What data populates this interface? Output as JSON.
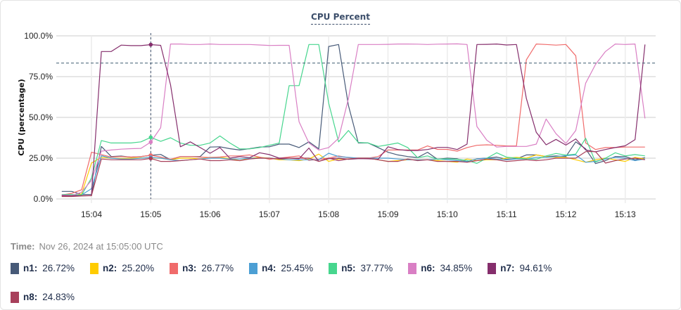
{
  "chart_data": {
    "type": "line",
    "title": "CPU Percent",
    "ylabel": "CPU (percentage)",
    "xlabel": "",
    "ylim": [
      0,
      100
    ],
    "y_ticks": [
      "0.0%",
      "25.0%",
      "50.0%",
      "75.0%",
      "100.0%"
    ],
    "x_ticks": [
      "15:04",
      "15:05",
      "15:06",
      "15:07",
      "15:08",
      "15:09",
      "15:10",
      "15:11",
      "15:12",
      "15:13"
    ],
    "grid": true,
    "threshold": 83.3,
    "crosshair_time": "15:05:00",
    "x": [
      "15:03:30",
      "15:03:40",
      "15:03:50",
      "15:04:00",
      "15:04:10",
      "15:04:20",
      "15:04:30",
      "15:04:40",
      "15:04:50",
      "15:05:00",
      "15:05:10",
      "15:05:20",
      "15:05:30",
      "15:05:40",
      "15:05:50",
      "15:06:00",
      "15:06:10",
      "15:06:20",
      "15:06:30",
      "15:06:40",
      "15:06:50",
      "15:07:00",
      "15:07:10",
      "15:07:20",
      "15:07:30",
      "15:07:40",
      "15:07:50",
      "15:08:00",
      "15:08:10",
      "15:08:20",
      "15:08:30",
      "15:08:40",
      "15:08:50",
      "15:09:00",
      "15:09:10",
      "15:09:20",
      "15:09:30",
      "15:09:40",
      "15:09:50",
      "15:10:00",
      "15:10:10",
      "15:10:20",
      "15:10:30",
      "15:10:40",
      "15:10:50",
      "15:11:00",
      "15:11:10",
      "15:11:20",
      "15:11:30",
      "15:11:40",
      "15:11:50",
      "15:12:00",
      "15:12:10",
      "15:12:20",
      "15:12:30",
      "15:12:40",
      "15:12:50",
      "15:13:00",
      "15:13:10",
      "15:13:20"
    ],
    "series": [
      {
        "name": "n1",
        "color": "#475a78",
        "values": [
          4.6,
          4.6,
          2.7,
          2.7,
          32.2,
          26,
          26.3,
          25.6,
          26,
          26.72,
          27.3,
          24,
          26,
          26,
          26,
          31.8,
          32,
          30.8,
          30,
          30.8,
          31.8,
          32,
          33.6,
          33.6,
          31.5,
          35,
          30.7,
          93.5,
          94.7,
          57.3,
          34.3,
          34.3,
          31.5,
          28.6,
          27,
          26,
          25.4,
          28.6,
          24.3,
          25,
          24.6,
          22.8,
          24.6,
          25,
          25.7,
          24.3,
          24.6,
          27,
          27,
          26,
          26.4,
          26,
          35,
          30.7,
          21.7,
          23.5,
          26,
          26,
          24,
          25.3
        ]
      },
      {
        "name": "n2",
        "color": "#ffcc00",
        "values": [
          1.6,
          2,
          3,
          22,
          25.5,
          25,
          24.8,
          25,
          25.2,
          25.2,
          25,
          24,
          25,
          25,
          24.5,
          25.5,
          25.5,
          24.8,
          23.5,
          25,
          25.5,
          25,
          24,
          24,
          23.5,
          24.5,
          27.5,
          23,
          24.5,
          24.5,
          25,
          25,
          24,
          23,
          23.5,
          24,
          24,
          24,
          23.5,
          23,
          22.5,
          24.5,
          23.5,
          24,
          24,
          25,
          25.5,
          25,
          27,
          26,
          25.5,
          25.5,
          24,
          22.5,
          24,
          25,
          24,
          23,
          25.5,
          24.5
        ]
      },
      {
        "name": "n3",
        "color": "#f06b6b",
        "values": [
          2.4,
          3.4,
          5.6,
          28.6,
          27.2,
          25.7,
          26,
          25.7,
          26,
          26.77,
          25.7,
          24.3,
          26,
          26,
          25.7,
          25.4,
          25.7,
          26.4,
          26.4,
          27,
          25.7,
          24.3,
          25,
          25.7,
          26.4,
          23.6,
          24.3,
          25,
          26.4,
          25.3,
          25,
          25,
          26,
          30,
          30,
          30,
          30,
          32.5,
          30.4,
          30.4,
          29.3,
          31.5,
          32.9,
          33.2,
          32.9,
          32.5,
          32.5,
          85.3,
          95,
          94.7,
          94.3,
          94.7,
          87.8,
          34.3,
          30.3,
          31.5,
          31.5,
          31.8,
          31.8,
          31.8
        ]
      },
      {
        "name": "n4",
        "color": "#4c9fd4",
        "values": [
          1.8,
          2,
          2.5,
          6.3,
          26.5,
          25,
          24.5,
          24.5,
          25,
          25.45,
          25,
          24,
          23.5,
          24,
          24.5,
          25,
          25,
          24.5,
          24.5,
          25,
          25,
          25,
          24.5,
          24,
          24,
          24,
          24,
          28,
          26,
          25.5,
          25,
          25,
          25,
          25,
          24.5,
          24,
          24,
          24,
          24.5,
          24,
          23.5,
          23,
          24.5,
          25,
          24.5,
          24,
          24.5,
          24.5,
          25.5,
          25.5,
          26,
          26.5,
          27,
          22.5,
          23,
          24.5,
          25.5,
          25,
          23.5,
          24.5
        ]
      },
      {
        "name": "n5",
        "color": "#47d68e",
        "values": [
          2.7,
          2.7,
          2.4,
          12.8,
          35.8,
          34.3,
          34.3,
          34.3,
          35,
          37.77,
          35.3,
          37.5,
          34.3,
          32.9,
          32.9,
          34.3,
          38.6,
          34.3,
          30.7,
          30.7,
          31.5,
          32.9,
          34.3,
          69.5,
          69.5,
          94.7,
          94.7,
          58.8,
          35,
          42,
          34.6,
          34.3,
          32.2,
          33.2,
          34.3,
          31.5,
          25.3,
          26.4,
          24.3,
          24.6,
          24.3,
          23.6,
          21.8,
          25,
          28.3,
          25.6,
          25,
          24.6,
          24.3,
          26.4,
          27.9,
          26.9,
          27.5,
          37.2,
          22.6,
          25,
          28.3,
          26.4,
          27.2,
          26.4
        ]
      },
      {
        "name": "n6",
        "color": "#d97fc4",
        "values": [
          2.4,
          2,
          4.2,
          11.4,
          29.3,
          30,
          30.5,
          30.8,
          31,
          34.85,
          43.7,
          95,
          95,
          94.7,
          94.7,
          95,
          94.7,
          94.7,
          94.7,
          94.7,
          94.4,
          94.1,
          94.2,
          94.2,
          47.3,
          34.3,
          30,
          31.5,
          37.2,
          61.6,
          94.7,
          94.7,
          94.7,
          94.8,
          95,
          95,
          94.9,
          94.7,
          94.9,
          95,
          95.1,
          94.7,
          44.4,
          36,
          31.8,
          32.2,
          32.2,
          32.2,
          33.6,
          49,
          40,
          34,
          42,
          71,
          82.5,
          90.4,
          95,
          94.7,
          95,
          49.4
        ]
      },
      {
        "name": "n7",
        "color": "#852e6c",
        "values": [
          2,
          2,
          2,
          2,
          90.4,
          90.4,
          94.3,
          94,
          94,
          94.61,
          94.2,
          70,
          32,
          35,
          31.5,
          28,
          31.5,
          25,
          26,
          25.3,
          28.3,
          27.2,
          25,
          25,
          24.6,
          31.2,
          23,
          24.7,
          25,
          24.3,
          24.7,
          24.6,
          24.3,
          32,
          30.3,
          29.7,
          29.7,
          30.3,
          31.6,
          31.6,
          30.3,
          33.6,
          94.7,
          94.8,
          95,
          94.4,
          94.7,
          61.6,
          40.8,
          33.2,
          36.5,
          33,
          36.8,
          30,
          28.9,
          30.3,
          31.5,
          32.6,
          36.4,
          94.7
        ]
      },
      {
        "name": "n8",
        "color": "#a8405b",
        "values": [
          1.5,
          1.5,
          1.8,
          2,
          24.5,
          24,
          24,
          24,
          24,
          24.83,
          23,
          23,
          23.5,
          24,
          24.5,
          23.5,
          23.5,
          24,
          23.5,
          24.5,
          25,
          25,
          24.5,
          25,
          25,
          25,
          23,
          25,
          23.5,
          24.5,
          25,
          25,
          24,
          23,
          23,
          24.5,
          23.5,
          24,
          23,
          23,
          23,
          22.5,
          23.5,
          24.5,
          24,
          23,
          23.5,
          24,
          23.5,
          24,
          25,
          25,
          25,
          29,
          29,
          22,
          23.5,
          24.5,
          25,
          24
        ]
      }
    ]
  },
  "tooltip": {
    "time_label": "Time:",
    "time_value": "Nov 26, 2024 at 15:05:00 UTC",
    "items": [
      {
        "label": "n1:",
        "value": "26.72%"
      },
      {
        "label": "n2:",
        "value": "25.20%"
      },
      {
        "label": "n3:",
        "value": "26.77%"
      },
      {
        "label": "n4:",
        "value": "25.45%"
      },
      {
        "label": "n5:",
        "value": "37.77%"
      },
      {
        "label": "n6:",
        "value": "34.85%"
      },
      {
        "label": "n7:",
        "value": "94.61%"
      },
      {
        "label": "n8:",
        "value": "24.83%"
      }
    ]
  }
}
